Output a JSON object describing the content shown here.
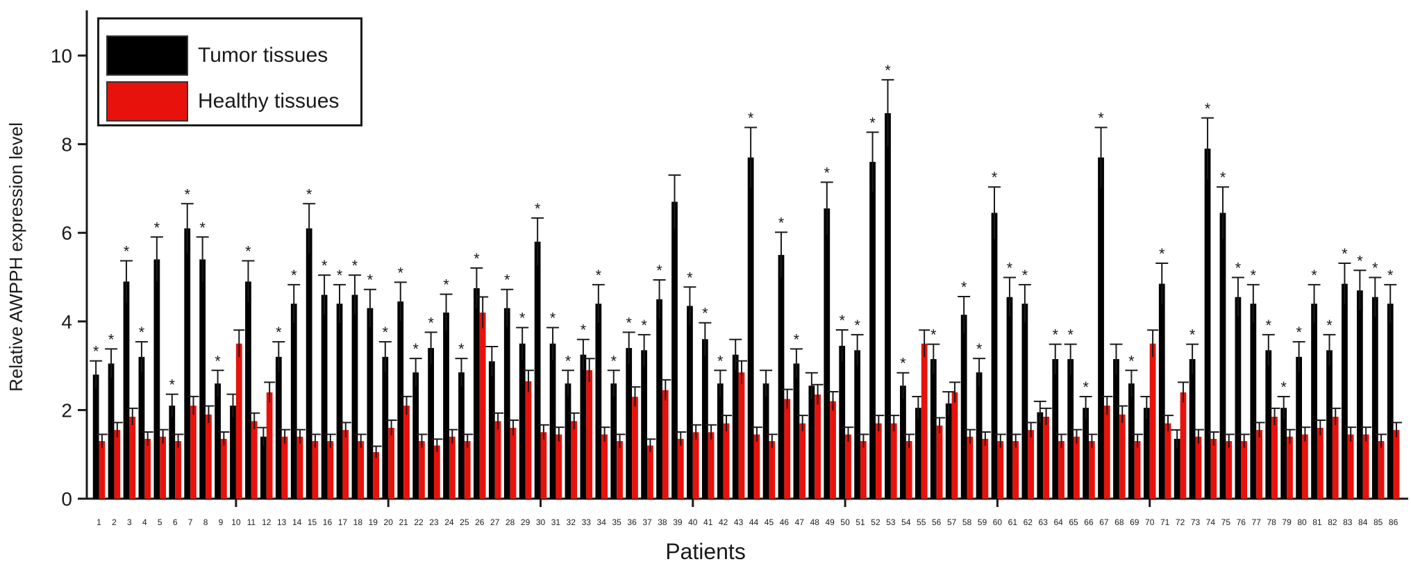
{
  "chart_data": {
    "type": "bar",
    "xlabel": "Patients",
    "ylabel": "Relative AWPPH expression level",
    "ylim": [
      0,
      11
    ],
    "yticks": [
      0,
      2,
      4,
      6,
      8,
      10
    ],
    "legend_position": "top-left",
    "categories": [
      "1",
      "2",
      "3",
      "4",
      "5",
      "6",
      "7",
      "8",
      "9",
      "10",
      "11",
      "12",
      "13",
      "14",
      "15",
      "16",
      "17",
      "18",
      "19",
      "20",
      "21",
      "22",
      "23",
      "24",
      "25",
      "26",
      "27",
      "28",
      "29",
      "30",
      "31",
      "32",
      "33",
      "34",
      "35",
      "36",
      "37",
      "38",
      "39",
      "40",
      "41",
      "42",
      "43",
      "44",
      "45",
      "46",
      "47",
      "48",
      "49",
      "50",
      "51",
      "52",
      "53",
      "54",
      "55",
      "56",
      "57",
      "58",
      "59",
      "60",
      "61",
      "62",
      "63",
      "64",
      "65",
      "66",
      "67",
      "68",
      "69",
      "70",
      "71",
      "72",
      "73",
      "74",
      "75",
      "76",
      "77",
      "78",
      "79",
      "80",
      "81",
      "82",
      "83",
      "84",
      "85",
      "86"
    ],
    "series": [
      {
        "name": "Tumor tissues",
        "color": "#000000",
        "values": [
          2.8,
          3.05,
          4.9,
          3.2,
          5.4,
          2.1,
          6.1,
          5.4,
          2.6,
          2.1,
          4.9,
          1.4,
          3.2,
          4.4,
          6.1,
          4.6,
          4.4,
          4.6,
          4.3,
          3.2,
          4.45,
          2.85,
          3.4,
          4.2,
          2.85,
          4.75,
          3.1,
          4.3,
          3.5,
          5.8,
          3.5,
          2.6,
          3.25,
          4.4,
          2.6,
          3.4,
          3.35,
          4.5,
          6.7,
          4.35,
          3.6,
          2.6,
          3.25,
          7.7,
          2.6,
          5.5,
          3.05,
          2.55,
          6.55,
          3.45,
          3.35,
          7.6,
          8.7,
          2.55,
          2.05,
          3.15,
          2.15,
          4.15,
          2.85,
          6.45,
          4.55,
          4.4,
          1.95,
          3.15,
          3.15,
          2.05,
          7.7,
          3.15,
          2.6,
          2.05,
          4.85,
          1.35,
          3.15,
          7.9,
          6.45,
          4.55,
          4.4,
          3.35,
          2.05,
          3.2,
          4.4,
          3.35,
          4.85,
          4.7,
          4.55,
          4.4
        ]
      },
      {
        "name": "Healthy tissues",
        "color": "#e8120c",
        "values": [
          1.3,
          1.55,
          1.85,
          1.35,
          1.4,
          1.3,
          2.1,
          1.9,
          1.35,
          3.5,
          1.75,
          2.4,
          1.4,
          1.4,
          1.3,
          1.3,
          1.55,
          1.3,
          1.05,
          1.6,
          2.1,
          1.3,
          1.2,
          1.4,
          1.3,
          4.2,
          1.75,
          1.6,
          2.65,
          1.5,
          1.45,
          1.75,
          2.9,
          1.45,
          1.3,
          2.3,
          1.2,
          2.45,
          1.35,
          1.5,
          1.5,
          1.7,
          2.85,
          1.45,
          1.3,
          2.25,
          1.7,
          2.35,
          2.2,
          1.45,
          1.3,
          1.7,
          1.7,
          1.3,
          3.5,
          1.65,
          2.4,
          1.4,
          1.35,
          1.3,
          1.3,
          1.55,
          1.85,
          1.3,
          1.4,
          1.3,
          2.1,
          1.9,
          1.3,
          3.5,
          1.7,
          2.4,
          1.4,
          1.35,
          1.3,
          1.3,
          1.55,
          1.85,
          1.4,
          1.45,
          1.6,
          1.85,
          1.45,
          1.45,
          1.3,
          1.55
        ]
      }
    ],
    "significance_marker": "*",
    "significant_patients": [
      "1",
      "2",
      "3",
      "4",
      "5",
      "6",
      "7",
      "8",
      "9",
      "11",
      "13",
      "14",
      "15",
      "16",
      "17",
      "18",
      "19",
      "20",
      "21",
      "22",
      "23",
      "24",
      "25",
      "26",
      "28",
      "29",
      "30",
      "31",
      "32",
      "33",
      "34",
      "35",
      "36",
      "37",
      "38",
      "40",
      "41",
      "42",
      "44",
      "46",
      "47",
      "49",
      "50",
      "51",
      "52",
      "53",
      "54",
      "56",
      "58",
      "59",
      "60",
      "61",
      "62",
      "64",
      "65",
      "66",
      "67",
      "69",
      "71",
      "73",
      "74",
      "75",
      "76",
      "77",
      "78",
      "79",
      "80",
      "81",
      "82",
      "83",
      "84",
      "85",
      "86"
    ]
  }
}
